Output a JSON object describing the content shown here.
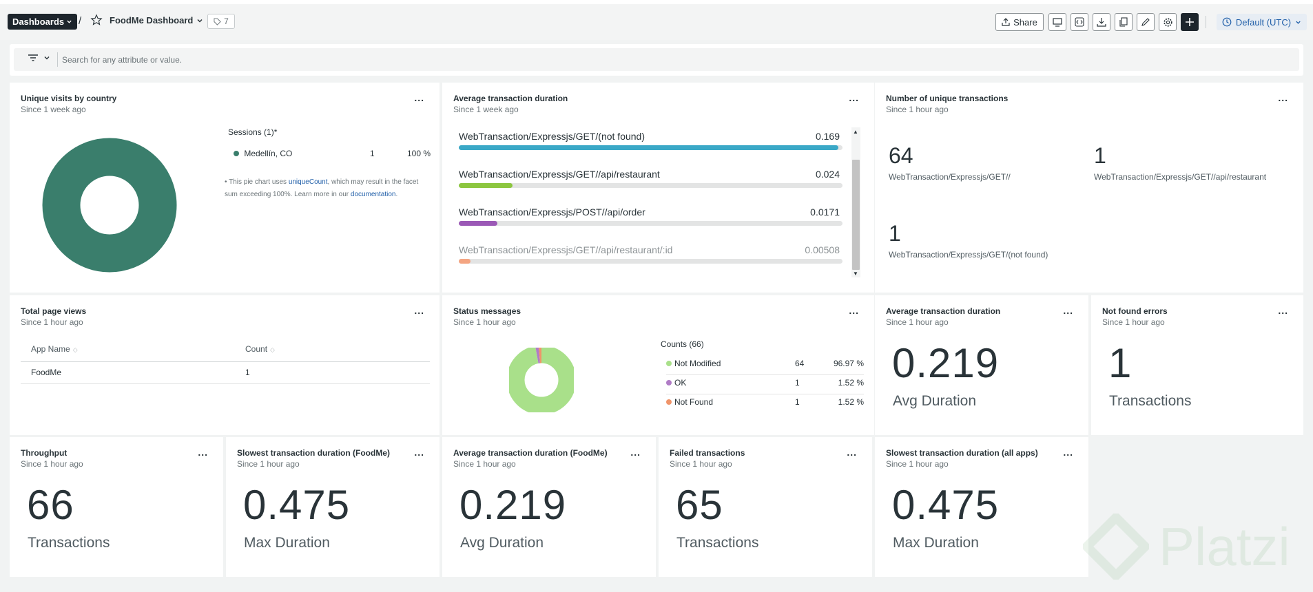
{
  "header": {
    "dashboards_label": "Dashboards",
    "separator": "/",
    "dashboard_title": "FoodMe Dashboard",
    "tag_count": "7",
    "share_label": "Share",
    "timezone_label": "Default (UTC)"
  },
  "filter": {
    "placeholder": "Search for any attribute or value."
  },
  "widgets": {
    "unique_visits": {
      "title": "Unique visits by country",
      "since": "Since 1 week ago",
      "legend_title": "Sessions (1)*",
      "rows": [
        {
          "name": "Medellín, CO",
          "count": "1",
          "pct": "100 %",
          "color": "#3a7e6c"
        }
      ],
      "note_prefix": "• This pie chart uses ",
      "note_link1": "uniqueCount",
      "note_middle": ", which may result in the facet sum exceeding 100%. Learn more in our ",
      "note_link2": "documentation",
      "note_suffix": "."
    },
    "avg_duration_bars": {
      "title": "Average transaction duration",
      "since": "Since 1 week ago",
      "rows": [
        {
          "label": "WebTransaction/Expressjs/GET/(not found)",
          "value": "0.169",
          "fill": 0.99,
          "color": "#3aa8c7"
        },
        {
          "label": "WebTransaction/Expressjs/GET//api/restaurant",
          "value": "0.024",
          "fill": 0.14,
          "color": "#8cc63f"
        },
        {
          "label": "WebTransaction/Expressjs/POST//api/order",
          "value": "0.0171",
          "fill": 0.1,
          "color": "#9b59b6"
        },
        {
          "label": "WebTransaction/Expressjs/GET//api/restaurant/:id",
          "value": "0.00508",
          "fill": 0.03,
          "color": "#f4a582"
        }
      ]
    },
    "unique_transactions": {
      "title": "Number of unique transactions",
      "since": "Since 1 hour ago",
      "items": [
        {
          "value": "64",
          "label": "WebTransaction/Expressjs/GET//"
        },
        {
          "value": "1",
          "label": "WebTransaction/Expressjs/GET//api/restaurant"
        },
        {
          "value": "1",
          "label": "WebTransaction/Expressjs/GET/(not found)"
        }
      ]
    },
    "page_views": {
      "title": "Total page views",
      "since": "Since 1 hour ago",
      "col_app": "App Name",
      "col_count": "Count",
      "rows": [
        {
          "app": "FoodMe",
          "count": "1"
        }
      ]
    },
    "status_messages": {
      "title": "Status messages",
      "since": "Since 1 hour ago",
      "legend_title": "Counts (66)",
      "rows": [
        {
          "name": "Not Modified",
          "count": "64",
          "pct": "96.97 %",
          "color": "#a9e08a"
        },
        {
          "name": "OK",
          "count": "1",
          "pct": "1.52 %",
          "color": "#b07cc6"
        },
        {
          "name": "Not Found",
          "count": "1",
          "pct": "1.52 %",
          "color": "#f0956a"
        }
      ]
    },
    "avg_duration_big": {
      "title": "Average transaction duration",
      "since": "Since 1 hour ago",
      "value": "0.219",
      "label": "Avg Duration"
    },
    "not_found": {
      "title": "Not found errors",
      "since": "Since 1 hour ago",
      "value": "1",
      "label": "Transactions"
    },
    "throughput": {
      "title": "Throughput",
      "since": "Since 1 hour ago",
      "value": "66",
      "label": "Transactions"
    },
    "slowest_foodme": {
      "title": "Slowest transaction duration (FoodMe)",
      "since": "Since 1 hour ago",
      "value": "0.475",
      "label": "Max Duration"
    },
    "avg_foodme": {
      "title": "Average transaction duration (FoodMe)",
      "since": "Since 1 hour ago",
      "value": "0.219",
      "label": "Avg Duration"
    },
    "failed": {
      "title": "Failed transactions",
      "since": "Since 1 hour ago",
      "value": "65",
      "label": "Transactions"
    },
    "slowest_all": {
      "title": "Slowest transaction duration (all apps)",
      "since": "Since 1 hour ago",
      "value": "0.475",
      "label": "Max Duration"
    }
  },
  "menu_glyph": "...",
  "watermark": "Platzi"
}
